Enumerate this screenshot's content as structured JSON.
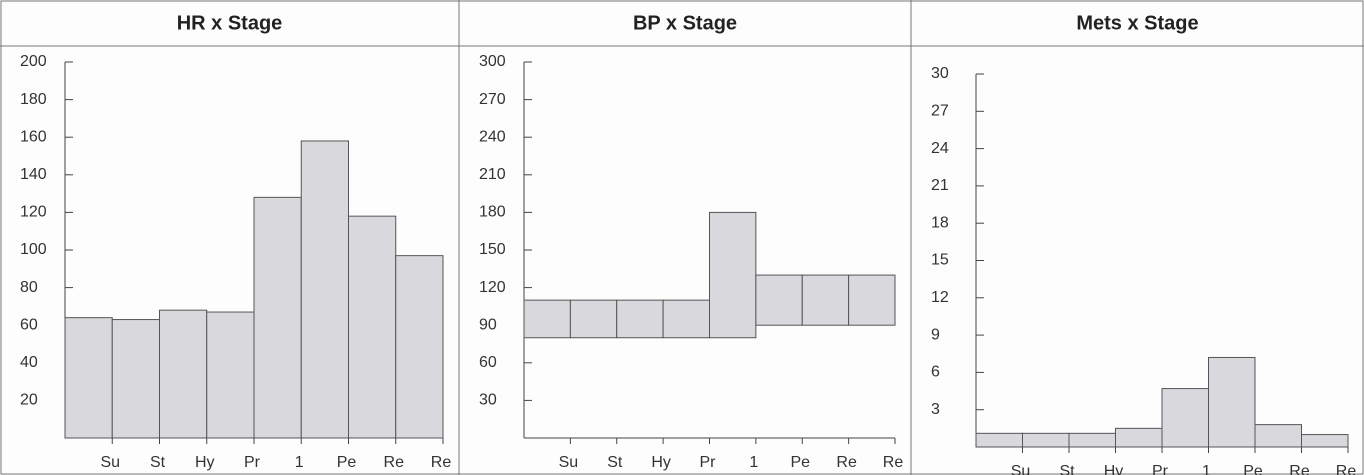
{
  "chart_data": [
    {
      "type": "bar",
      "title": "HR x Stage",
      "categories": [
        "Su",
        "St",
        "Hy",
        "Pr",
        "1",
        "Pe",
        "Re",
        "Re"
      ],
      "values": [
        64,
        63,
        68,
        67,
        128,
        158,
        118,
        97
      ],
      "color": "#d9d9dd",
      "ylim": [
        0,
        200
      ],
      "yticks": [
        20,
        40,
        60,
        80,
        100,
        120,
        140,
        160,
        180,
        200
      ]
    },
    {
      "type": "range_bar",
      "title": "BP x Stage",
      "categories": [
        "Su",
        "St",
        "Hy",
        "Pr",
        "1",
        "Pe",
        "Re",
        "Re"
      ],
      "low": [
        80,
        80,
        80,
        80,
        80,
        90,
        90,
        90
      ],
      "high": [
        110,
        110,
        110,
        110,
        180,
        130,
        130,
        130
      ],
      "color": "#d9d9dd",
      "ylim": [
        0,
        300
      ],
      "yticks": [
        30,
        60,
        90,
        120,
        150,
        180,
        210,
        240,
        270,
        300
      ]
    },
    {
      "type": "bar",
      "title": "Mets x Stage",
      "categories": [
        "Su",
        "St",
        "Hy",
        "Pr",
        "1",
        "Pe",
        "Re",
        "Re"
      ],
      "values": [
        1.1,
        1.1,
        1.1,
        1.5,
        4.7,
        7.2,
        1.8,
        1.0
      ],
      "color": "#d9d9dd",
      "ylim": [
        0,
        30
      ],
      "yticks": [
        3,
        6,
        9,
        12,
        15,
        18,
        21,
        24,
        27,
        30
      ]
    }
  ]
}
